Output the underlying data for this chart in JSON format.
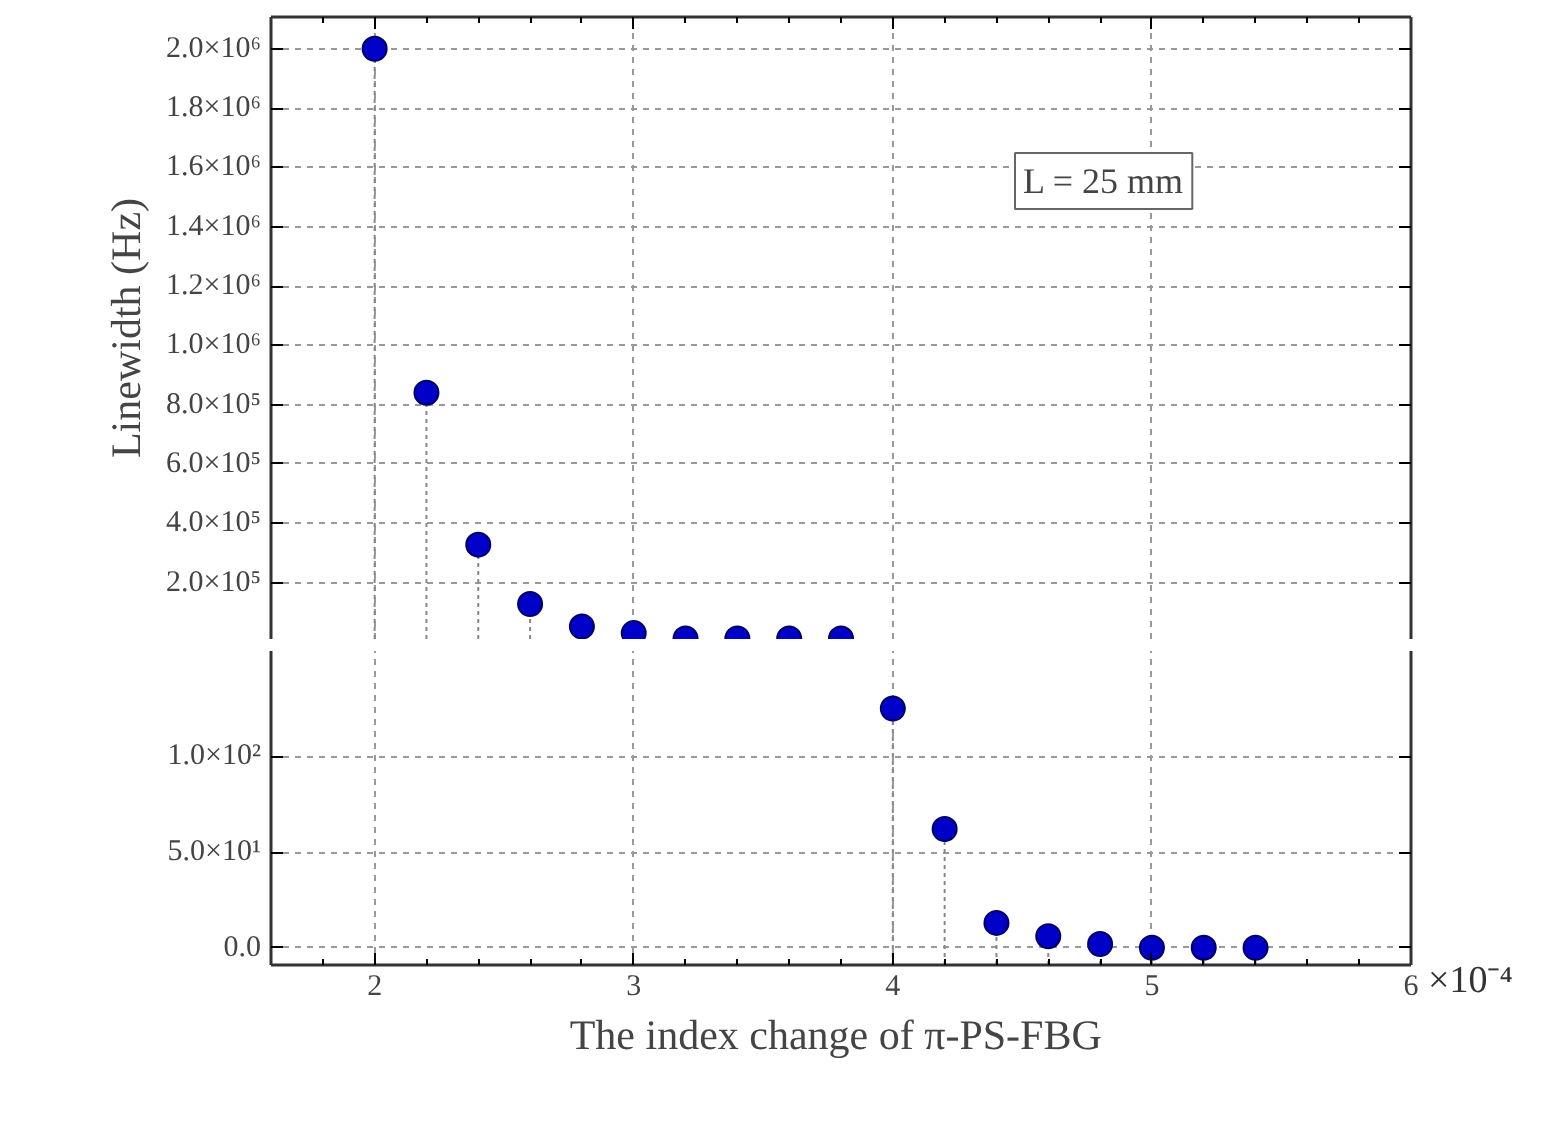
{
  "chart_data": [
    {
      "type": "lollipop",
      "ylabel": "Linewidth (Hz)",
      "x": [
        2.0,
        2.2,
        2.4,
        2.6,
        2.8,
        3.0,
        3.2,
        3.4,
        3.6,
        3.8
      ],
      "values": [
        2000000,
        840000,
        328000,
        128000,
        52000,
        30000,
        12000,
        12000,
        12000,
        12000
      ],
      "color": "#0000c8",
      "marker": "circle",
      "line_style": "dotted",
      "grid": true,
      "xlim": [
        1.6,
        6.0
      ],
      "xticks": [
        2,
        3,
        4,
        5,
        6
      ],
      "ylim": [
        10000,
        2107000
      ],
      "yticks": [
        {
          "value": 200000,
          "label": "2.0×10⁵"
        },
        {
          "value": 400000,
          "label": "4.0×10⁵"
        },
        {
          "value": 600000,
          "label": "6.0×10⁵"
        },
        {
          "value": 800000,
          "label": "8.0×10⁵"
        },
        {
          "value": 1000000,
          "label": "1.0×10⁶"
        },
        {
          "value": 1200000,
          "label": "1.2×10⁶"
        },
        {
          "value": 1400000,
          "label": "1.4×10⁶"
        },
        {
          "value": 1600000,
          "label": "1.6×10⁶"
        },
        {
          "value": 1800000,
          "label": "1.8×10⁶"
        },
        {
          "value": 2000000,
          "label": "2.0×10⁶"
        }
      ],
      "tick_labels": "y",
      "annotations": [
        "L = 25 mm"
      ]
    },
    {
      "type": "lollipop",
      "xlabel": "The index change of  π-PS-FBG",
      "x": [
        4.0,
        4.2,
        4.4,
        4.6,
        4.8,
        5.0,
        5.2,
        5.4
      ],
      "values": [
        125,
        62,
        13,
        6,
        2,
        0,
        0,
        0
      ],
      "color": "#0000c8",
      "marker": "circle",
      "line_style": "dotted",
      "grid": true,
      "xlim": [
        1.6,
        6.0
      ],
      "xticks": [
        2,
        3,
        4,
        5,
        6
      ],
      "ylim": [
        -9,
        155
      ],
      "yticks": [
        {
          "value": 0,
          "label": "0.0"
        },
        {
          "value": 50,
          "label": "5.0×10¹"
        },
        {
          "value": 100,
          "label": "1.0×10²"
        }
      ],
      "annotations": [
        "×10⁻⁴"
      ]
    }
  ]
}
